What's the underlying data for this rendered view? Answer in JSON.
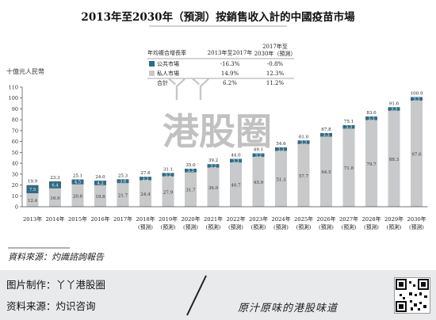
{
  "chart_data": {
    "type": "bar",
    "title": "2013年至2030年（預測）按銷售收入計的中國疫苗市場",
    "ylabel": "十億元人民幣",
    "ylim": [
      0,
      110
    ],
    "yticks": [
      0,
      10,
      20,
      30,
      40,
      50,
      60,
      70,
      80,
      90,
      100,
      110
    ],
    "categories": [
      "2013年",
      "2014年",
      "2015年",
      "2016年",
      "2017年",
      "2018年",
      "2019年",
      "2020年",
      "2021年",
      "2022年",
      "2023年",
      "2024年",
      "2025年",
      "2026年",
      "2027年",
      "2028年",
      "2029年",
      "2030年"
    ],
    "category_sublabels": [
      "",
      "",
      "",
      "",
      "",
      "(預測)",
      "(預測)",
      "(預測)",
      "(預測)",
      "(預測)",
      "(預測)",
      "(預測)",
      "(預測)",
      "(預測)",
      "(預測)",
      "(預測)",
      "(預測)",
      "(預測)"
    ],
    "series": [
      {
        "name": "私人市場",
        "color": "#c8c9cb",
        "values": [
          12.4,
          16.9,
          20.6,
          19.8,
          21.7,
          24.4,
          27.9,
          31.7,
          36.0,
          40.7,
          45.9,
          51.3,
          57.7,
          64.5,
          71.8,
          79.7,
          88.3,
          97.6
        ]
      },
      {
        "name": "公共市場",
        "color": "#2e6b84",
        "values": [
          7.5,
          6.4,
          4.5,
          4.2,
          3.6,
          3.2,
          3.2,
          3.3,
          3.2,
          3.3,
          3.2,
          3.3,
          3.3,
          3.3,
          3.3,
          3.3,
          3.3,
          3.3
        ]
      }
    ],
    "totals": [
      19.9,
      23.3,
      25.1,
      24.0,
      25.3,
      27.6,
      31.1,
      35.0,
      39.2,
      44.0,
      49.1,
      54.6,
      61.0,
      67.8,
      75.1,
      83.0,
      91.6,
      100.9
    ],
    "legend_table": {
      "header_label": "年均複合增長率",
      "col1": "2013年至2017年",
      "col2": "2017年至2030年（預測）",
      "rows": [
        {
          "label": "公共市場",
          "v1": "-16.3%",
          "v2": "-0.8%"
        },
        {
          "label": "私人市場",
          "v1": "14.9%",
          "v2": "12.3%"
        },
        {
          "label": "合計",
          "v1": "6.2%",
          "v2": "11.2%"
        }
      ]
    },
    "grid": false,
    "legend_position": "top-center"
  },
  "source_note": "資料來源：灼識諮詢報告",
  "watermark_text": "港股圈",
  "footer": {
    "made_by": "图片制作：丫丫港股圈",
    "source": "资料来源：灼识咨询",
    "slogan": "原汁原味的港股味道"
  }
}
